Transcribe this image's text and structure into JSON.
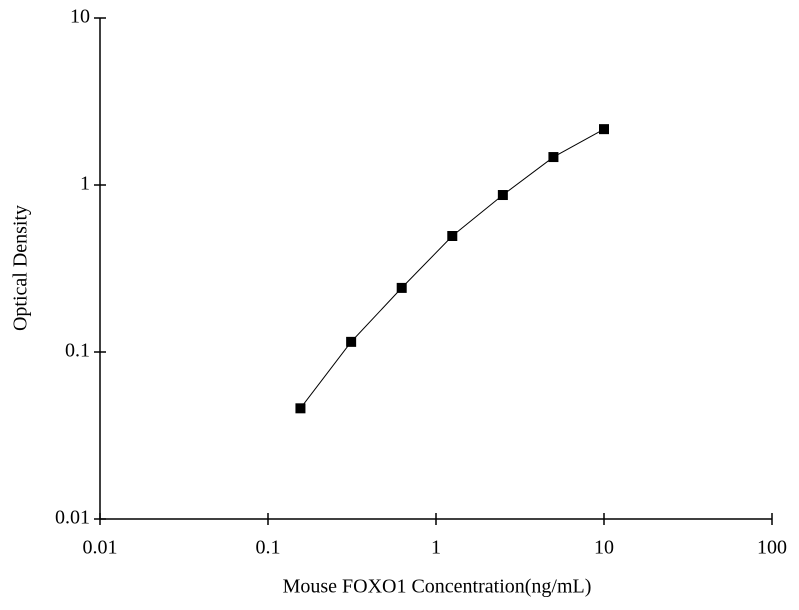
{
  "chart_data": {
    "type": "line",
    "x_label": "Mouse FOXO1 Concentration(ng/mL)",
    "y_label": "Optical Density",
    "x": [
      0.156,
      0.3125,
      0.625,
      1.25,
      2.5,
      5,
      10
    ],
    "series": [
      {
        "color": "#000000",
        "values": [
          0.046,
          0.115,
          0.242,
          0.495,
          0.871,
          1.47,
          2.16
        ]
      }
    ],
    "xscale": "log",
    "yscale": "log",
    "xlim": [
      0.01,
      100
    ],
    "ylim": [
      0.01,
      10
    ],
    "xticks": [
      0.01,
      0.1,
      1,
      10,
      100
    ],
    "yticks": [
      0.01,
      0.1,
      1,
      10
    ],
    "markers": true
  }
}
